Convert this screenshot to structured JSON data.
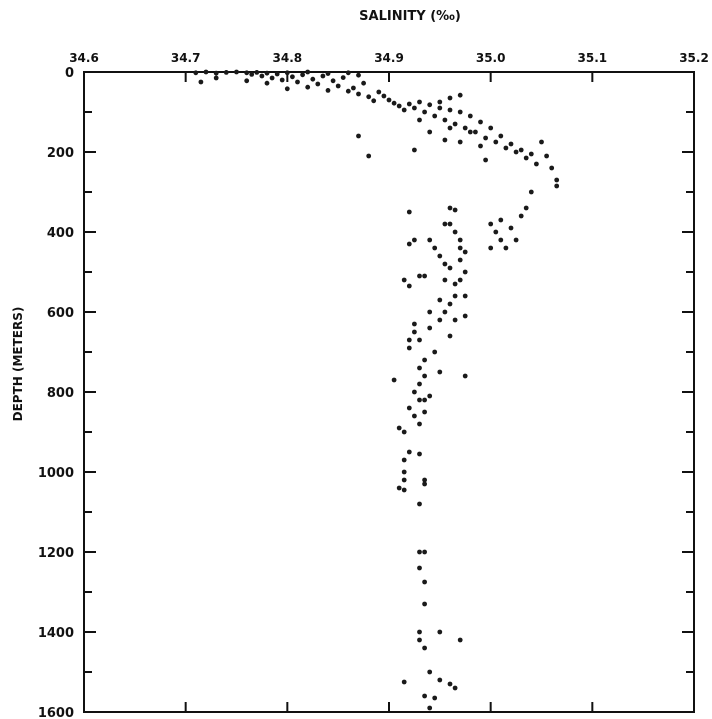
{
  "chart_data": {
    "type": "scatter",
    "title": "SALINITY (‰)",
    "xlabel": "SALINITY (‰)",
    "ylabel": "DEPTH (METERS)",
    "xlim": [
      34.6,
      35.2
    ],
    "ylim": [
      0,
      1600
    ],
    "y_inverted": true,
    "x_axis_position": "top",
    "x_ticks": [
      "34.6",
      "34.7",
      "34.8",
      "34.9",
      "35.0",
      "35.1",
      "35.2"
    ],
    "y_ticks": [
      "0",
      "200",
      "400",
      "600",
      "800",
      "1000",
      "1200",
      "1400",
      "1600"
    ],
    "grid": false,
    "legend": "none",
    "point_color": "#1a1a1a",
    "series": [
      {
        "points": [
          [
            34.71,
            2
          ],
          [
            34.72,
            0
          ],
          [
            34.73,
            3
          ],
          [
            34.74,
            1
          ],
          [
            34.75,
            0
          ],
          [
            34.76,
            2
          ],
          [
            34.765,
            6
          ],
          [
            34.77,
            1
          ],
          [
            34.775,
            10
          ],
          [
            34.78,
            3
          ],
          [
            34.785,
            15
          ],
          [
            34.79,
            5
          ],
          [
            34.795,
            20
          ],
          [
            34.8,
            2
          ],
          [
            34.805,
            12
          ],
          [
            34.81,
            25
          ],
          [
            34.815,
            7
          ],
          [
            34.82,
            0
          ],
          [
            34.825,
            18
          ],
          [
            34.83,
            30
          ],
          [
            34.835,
            10
          ],
          [
            34.84,
            4
          ],
          [
            34.845,
            22
          ],
          [
            34.85,
            35
          ],
          [
            34.855,
            14
          ],
          [
            34.86,
            2
          ],
          [
            34.865,
            40
          ],
          [
            34.87,
            8
          ],
          [
            34.875,
            28
          ],
          [
            34.715,
            25
          ],
          [
            34.73,
            15
          ],
          [
            34.76,
            22
          ],
          [
            34.78,
            28
          ],
          [
            34.8,
            42
          ],
          [
            34.82,
            38
          ],
          [
            34.84,
            46
          ],
          [
            34.86,
            48
          ],
          [
            34.87,
            55
          ],
          [
            34.88,
            62
          ],
          [
            34.885,
            72
          ],
          [
            34.89,
            50
          ],
          [
            34.895,
            60
          ],
          [
            34.9,
            70
          ],
          [
            34.905,
            78
          ],
          [
            34.91,
            85
          ],
          [
            34.915,
            95
          ],
          [
            34.92,
            80
          ],
          [
            34.925,
            90
          ],
          [
            34.93,
            75
          ],
          [
            34.935,
            100
          ],
          [
            34.94,
            82
          ],
          [
            34.945,
            110
          ],
          [
            34.95,
            90
          ],
          [
            34.955,
            120
          ],
          [
            34.96,
            95
          ],
          [
            34.965,
            130
          ],
          [
            34.97,
            100
          ],
          [
            34.975,
            140
          ],
          [
            34.98,
            110
          ],
          [
            34.985,
            150
          ],
          [
            34.99,
            125
          ],
          [
            34.995,
            165
          ],
          [
            35.0,
            140
          ],
          [
            35.005,
            175
          ],
          [
            35.01,
            160
          ],
          [
            35.015,
            190
          ],
          [
            35.02,
            180
          ],
          [
            35.025,
            200
          ],
          [
            35.03,
            195
          ],
          [
            35.035,
            215
          ],
          [
            35.04,
            205
          ],
          [
            35.045,
            230
          ],
          [
            35.05,
            175
          ],
          [
            35.055,
            210
          ],
          [
            35.06,
            240
          ],
          [
            35.065,
            270
          ],
          [
            35.065,
            285
          ],
          [
            34.95,
            75
          ],
          [
            34.96,
            65
          ],
          [
            34.97,
            58
          ],
          [
            34.93,
            120
          ],
          [
            34.94,
            150
          ],
          [
            34.955,
            170
          ],
          [
            34.97,
            175
          ],
          [
            34.98,
            150
          ],
          [
            34.99,
            185
          ],
          [
            34.995,
            220
          ],
          [
            34.87,
            160
          ],
          [
            34.88,
            210
          ],
          [
            34.925,
            195
          ],
          [
            34.96,
            140
          ],
          [
            34.92,
            350
          ],
          [
            34.92,
            430
          ],
          [
            34.925,
            420
          ],
          [
            34.915,
            520
          ],
          [
            34.92,
            535
          ],
          [
            34.93,
            510
          ],
          [
            34.935,
            510
          ],
          [
            34.94,
            420
          ],
          [
            34.945,
            440
          ],
          [
            34.95,
            460
          ],
          [
            34.955,
            480
          ],
          [
            34.955,
            520
          ],
          [
            34.96,
            380
          ],
          [
            34.965,
            400
          ],
          [
            34.96,
            490
          ],
          [
            34.965,
            530
          ],
          [
            34.965,
            560
          ],
          [
            34.97,
            420
          ],
          [
            34.97,
            470
          ],
          [
            34.97,
            520
          ],
          [
            34.975,
            450
          ],
          [
            34.975,
            500
          ],
          [
            34.975,
            560
          ],
          [
            34.975,
            610
          ],
          [
            34.96,
            580
          ],
          [
            34.965,
            620
          ],
          [
            34.95,
            570
          ],
          [
            34.95,
            620
          ],
          [
            34.955,
            600
          ],
          [
            34.94,
            600
          ],
          [
            34.94,
            640
          ],
          [
            34.96,
            340
          ],
          [
            34.965,
            345
          ],
          [
            34.955,
            380
          ],
          [
            34.97,
            440
          ],
          [
            35.0,
            380
          ],
          [
            35.005,
            400
          ],
          [
            35.01,
            370
          ],
          [
            35.01,
            420
          ],
          [
            35.015,
            440
          ],
          [
            35.02,
            390
          ],
          [
            35.025,
            420
          ],
          [
            35.03,
            360
          ],
          [
            35.035,
            340
          ],
          [
            35.04,
            300
          ],
          [
            35.0,
            440
          ],
          [
            34.96,
            660
          ],
          [
            34.925,
            630
          ],
          [
            34.925,
            650
          ],
          [
            34.92,
            670
          ],
          [
            34.93,
            670
          ],
          [
            34.92,
            690
          ],
          [
            34.935,
            720
          ],
          [
            34.945,
            700
          ],
          [
            34.93,
            740
          ],
          [
            34.935,
            760
          ],
          [
            34.93,
            780
          ],
          [
            34.925,
            800
          ],
          [
            34.93,
            820
          ],
          [
            34.935,
            820
          ],
          [
            34.92,
            840
          ],
          [
            34.925,
            860
          ],
          [
            34.935,
            850
          ],
          [
            34.94,
            810
          ],
          [
            34.95,
            750
          ],
          [
            34.975,
            760
          ],
          [
            34.905,
            770
          ],
          [
            34.91,
            890
          ],
          [
            34.915,
            900
          ],
          [
            34.93,
            880
          ],
          [
            34.92,
            950
          ],
          [
            34.93,
            955
          ],
          [
            34.915,
            970
          ],
          [
            34.915,
            1000
          ],
          [
            34.915,
            1020
          ],
          [
            34.91,
            1040
          ],
          [
            34.915,
            1045
          ],
          [
            34.935,
            1020
          ],
          [
            34.935,
            1030
          ],
          [
            34.93,
            1080
          ],
          [
            34.93,
            1200
          ],
          [
            34.935,
            1200
          ],
          [
            34.93,
            1240
          ],
          [
            34.935,
            1275
          ],
          [
            34.935,
            1330
          ],
          [
            34.93,
            1400
          ],
          [
            34.93,
            1420
          ],
          [
            34.935,
            1440
          ],
          [
            34.95,
            1400
          ],
          [
            34.95,
            1520
          ],
          [
            34.96,
            1530
          ],
          [
            34.965,
            1540
          ],
          [
            34.97,
            1420
          ],
          [
            34.94,
            1500
          ],
          [
            34.935,
            1560
          ],
          [
            34.945,
            1565
          ],
          [
            34.94,
            1590
          ],
          [
            34.915,
            1525
          ]
        ]
      }
    ]
  }
}
